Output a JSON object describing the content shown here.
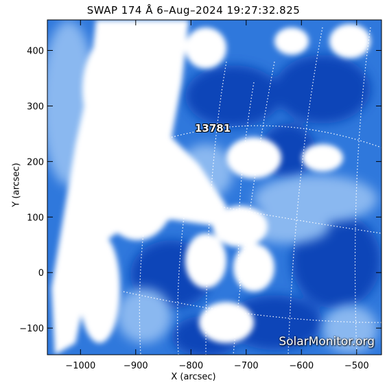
{
  "title": "SWAP 174 Å  6–Aug–2024 19:27:32.825",
  "active_region_label": "13781",
  "watermark": "SolarMonitor.org",
  "colors": {
    "deep_blue": "#0b44b8",
    "mid_blue": "#2f78dc",
    "light_blue": "#8ab8f0",
    "plasma_white": "#ffffff"
  },
  "chart_data": {
    "type": "heatmap",
    "xlabel": "X (arcsec)",
    "ylabel": "Y (arcsec)",
    "xlim": [
      -1060,
      -455
    ],
    "ylim": [
      -148,
      455
    ],
    "x_ticks": [
      -1000,
      -900,
      -800,
      -700,
      -600,
      -500
    ],
    "x_tick_labels": [
      "−1000",
      "−900",
      "−800",
      "−700",
      "−600",
      "−500"
    ],
    "y_ticks": [
      -100,
      0,
      100,
      200,
      300,
      400
    ],
    "y_tick_labels": [
      "−100",
      "0",
      "100",
      "200",
      "300",
      "400"
    ],
    "grid": "heliographic dotted lines",
    "annotations": [
      {
        "text": "13781",
        "x": -755,
        "y": 255
      }
    ]
  }
}
